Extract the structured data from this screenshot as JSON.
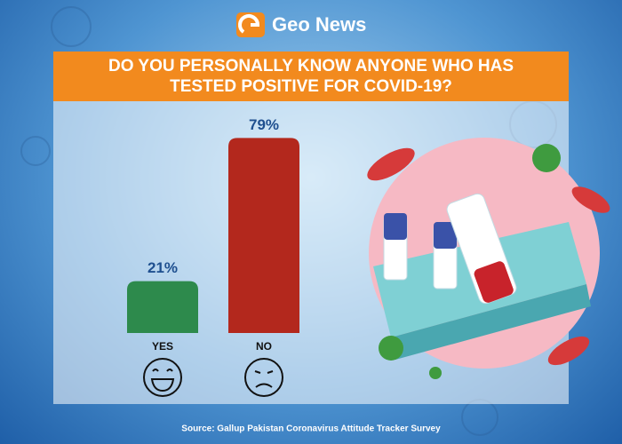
{
  "brand": "Geo News",
  "chart_data": {
    "type": "bar",
    "title": "DO YOU PERSONALLY KNOW ANYONE WHO HAS TESTED POSITIVE FOR COVID-19?",
    "categories": [
      "YES",
      "NO"
    ],
    "values": [
      21,
      79
    ],
    "value_labels": [
      "21%",
      "79%"
    ],
    "colors": [
      "#2d8a4c",
      "#b3281d"
    ],
    "label_color": "#1e4f8f",
    "source": "Source: Gallup Pakistan Coronavirus Attitude Tracker Survey"
  }
}
